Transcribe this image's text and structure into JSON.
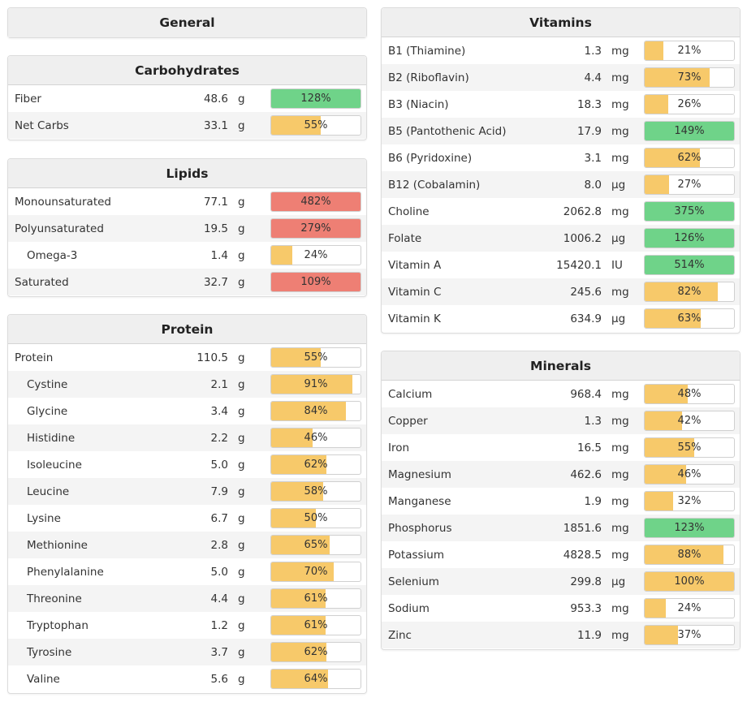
{
  "colors": {
    "yellow": "#f7c96a",
    "green": "#6fd389",
    "red": "#ee7f74"
  },
  "panels": {
    "general": {
      "title": "General",
      "rows": []
    },
    "carbohydrates": {
      "title": "Carbohydrates",
      "rows": [
        {
          "name": "Fiber",
          "value": "48.6",
          "unit": "g",
          "percent": "128%",
          "fraction": 1.0,
          "status": "green"
        },
        {
          "name": "Net Carbs",
          "value": "33.1",
          "unit": "g",
          "percent": "55%",
          "fraction": 0.55,
          "status": "yellow"
        }
      ]
    },
    "lipids": {
      "title": "Lipids",
      "rows": [
        {
          "name": "Monounsaturated",
          "value": "77.1",
          "unit": "g",
          "percent": "482%",
          "fraction": 1.0,
          "status": "red"
        },
        {
          "name": "Polyunsaturated",
          "value": "19.5",
          "unit": "g",
          "percent": "279%",
          "fraction": 1.0,
          "status": "red"
        },
        {
          "name": "Omega-3",
          "value": "1.4",
          "unit": "g",
          "percent": "24%",
          "fraction": 0.24,
          "status": "yellow",
          "indent": true
        },
        {
          "name": "Saturated",
          "value": "32.7",
          "unit": "g",
          "percent": "109%",
          "fraction": 1.0,
          "status": "red"
        }
      ]
    },
    "protein": {
      "title": "Protein",
      "rows": [
        {
          "name": "Protein",
          "value": "110.5",
          "unit": "g",
          "percent": "55%",
          "fraction": 0.55,
          "status": "yellow"
        },
        {
          "name": "Cystine",
          "value": "2.1",
          "unit": "g",
          "percent": "91%",
          "fraction": 0.91,
          "status": "yellow",
          "indent": true
        },
        {
          "name": "Glycine",
          "value": "3.4",
          "unit": "g",
          "percent": "84%",
          "fraction": 0.84,
          "status": "yellow",
          "indent": true
        },
        {
          "name": "Histidine",
          "value": "2.2",
          "unit": "g",
          "percent": "46%",
          "fraction": 0.46,
          "status": "yellow",
          "indent": true
        },
        {
          "name": "Isoleucine",
          "value": "5.0",
          "unit": "g",
          "percent": "62%",
          "fraction": 0.62,
          "status": "yellow",
          "indent": true
        },
        {
          "name": "Leucine",
          "value": "7.9",
          "unit": "g",
          "percent": "58%",
          "fraction": 0.58,
          "status": "yellow",
          "indent": true
        },
        {
          "name": "Lysine",
          "value": "6.7",
          "unit": "g",
          "percent": "50%",
          "fraction": 0.5,
          "status": "yellow",
          "indent": true
        },
        {
          "name": "Methionine",
          "value": "2.8",
          "unit": "g",
          "percent": "65%",
          "fraction": 0.65,
          "status": "yellow",
          "indent": true
        },
        {
          "name": "Phenylalanine",
          "value": "5.0",
          "unit": "g",
          "percent": "70%",
          "fraction": 0.7,
          "status": "yellow",
          "indent": true
        },
        {
          "name": "Threonine",
          "value": "4.4",
          "unit": "g",
          "percent": "61%",
          "fraction": 0.61,
          "status": "yellow",
          "indent": true
        },
        {
          "name": "Tryptophan",
          "value": "1.2",
          "unit": "g",
          "percent": "61%",
          "fraction": 0.61,
          "status": "yellow",
          "indent": true
        },
        {
          "name": "Tyrosine",
          "value": "3.7",
          "unit": "g",
          "percent": "62%",
          "fraction": 0.62,
          "status": "yellow",
          "indent": true
        },
        {
          "name": "Valine",
          "value": "5.6",
          "unit": "g",
          "percent": "64%",
          "fraction": 0.64,
          "status": "yellow",
          "indent": true
        }
      ]
    },
    "vitamins": {
      "title": "Vitamins",
      "rows": [
        {
          "name": "B1 (Thiamine)",
          "value": "1.3",
          "unit": "mg",
          "percent": "21%",
          "fraction": 0.21,
          "status": "yellow"
        },
        {
          "name": "B2 (Riboflavin)",
          "value": "4.4",
          "unit": "mg",
          "percent": "73%",
          "fraction": 0.73,
          "status": "yellow"
        },
        {
          "name": "B3 (Niacin)",
          "value": "18.3",
          "unit": "mg",
          "percent": "26%",
          "fraction": 0.26,
          "status": "yellow"
        },
        {
          "name": "B5 (Pantothenic Acid)",
          "value": "17.9",
          "unit": "mg",
          "percent": "149%",
          "fraction": 1.0,
          "status": "green"
        },
        {
          "name": "B6 (Pyridoxine)",
          "value": "3.1",
          "unit": "mg",
          "percent": "62%",
          "fraction": 0.62,
          "status": "yellow"
        },
        {
          "name": "B12 (Cobalamin)",
          "value": "8.0",
          "unit": "µg",
          "percent": "27%",
          "fraction": 0.27,
          "status": "yellow"
        },
        {
          "name": "Choline",
          "value": "2062.8",
          "unit": "mg",
          "percent": "375%",
          "fraction": 1.0,
          "status": "green"
        },
        {
          "name": "Folate",
          "value": "1006.2",
          "unit": "µg",
          "percent": "126%",
          "fraction": 1.0,
          "status": "green"
        },
        {
          "name": "Vitamin A",
          "value": "15420.1",
          "unit": "IU",
          "percent": "514%",
          "fraction": 1.0,
          "status": "green"
        },
        {
          "name": "Vitamin C",
          "value": "245.6",
          "unit": "mg",
          "percent": "82%",
          "fraction": 0.82,
          "status": "yellow"
        },
        {
          "name": "Vitamin K",
          "value": "634.9",
          "unit": "µg",
          "percent": "63%",
          "fraction": 0.63,
          "status": "yellow"
        }
      ]
    },
    "minerals": {
      "title": "Minerals",
      "rows": [
        {
          "name": "Calcium",
          "value": "968.4",
          "unit": "mg",
          "percent": "48%",
          "fraction": 0.48,
          "status": "yellow"
        },
        {
          "name": "Copper",
          "value": "1.3",
          "unit": "mg",
          "percent": "42%",
          "fraction": 0.42,
          "status": "yellow"
        },
        {
          "name": "Iron",
          "value": "16.5",
          "unit": "mg",
          "percent": "55%",
          "fraction": 0.55,
          "status": "yellow"
        },
        {
          "name": "Magnesium",
          "value": "462.6",
          "unit": "mg",
          "percent": "46%",
          "fraction": 0.46,
          "status": "yellow"
        },
        {
          "name": "Manganese",
          "value": "1.9",
          "unit": "mg",
          "percent": "32%",
          "fraction": 0.32,
          "status": "yellow"
        },
        {
          "name": "Phosphorus",
          "value": "1851.6",
          "unit": "mg",
          "percent": "123%",
          "fraction": 1.0,
          "status": "green"
        },
        {
          "name": "Potassium",
          "value": "4828.5",
          "unit": "mg",
          "percent": "88%",
          "fraction": 0.88,
          "status": "yellow"
        },
        {
          "name": "Selenium",
          "value": "299.8",
          "unit": "µg",
          "percent": "100%",
          "fraction": 1.0,
          "status": "yellow"
        },
        {
          "name": "Sodium",
          "value": "953.3",
          "unit": "mg",
          "percent": "24%",
          "fraction": 0.24,
          "status": "yellow"
        },
        {
          "name": "Zinc",
          "value": "11.9",
          "unit": "mg",
          "percent": "37%",
          "fraction": 0.37,
          "status": "yellow"
        }
      ]
    }
  }
}
